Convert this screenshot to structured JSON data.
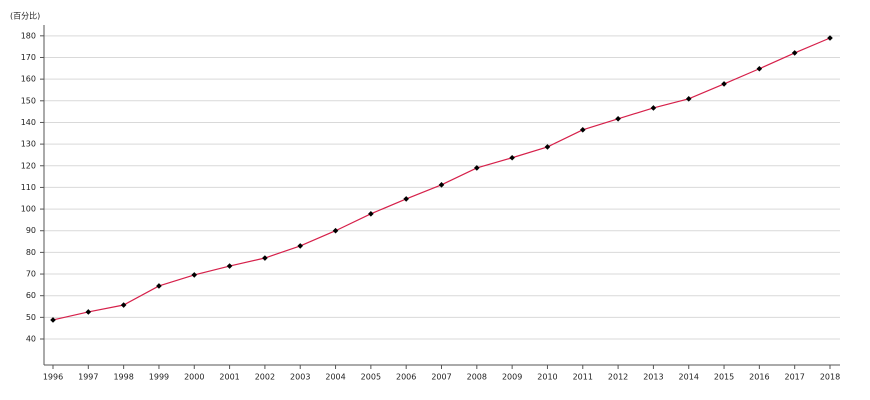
{
  "chart_data": {
    "type": "line",
    "y_label": "(百分比)",
    "categories": [
      "1996",
      "1997",
      "1998",
      "1999",
      "2000",
      "2001",
      "2002",
      "2003",
      "2004",
      "2005",
      "2006",
      "2007",
      "2008",
      "2009",
      "2010",
      "2011",
      "2012",
      "2013",
      "2014",
      "2015",
      "2016",
      "2017",
      "2018"
    ],
    "series": [
      {
        "color": "#d6204a",
        "marker_color": "#000000",
        "values": [
          48.8,
          52.5,
          55.7,
          64.5,
          69.6,
          73.7,
          77.4,
          83,
          90,
          97.8,
          104.7,
          111.2,
          119,
          123.7,
          128.7,
          136.6,
          141.7,
          146.7,
          150.9,
          157.8,
          164.8,
          172.1,
          179
        ]
      }
    ],
    "ylim": [
      28,
      185
    ],
    "yticks": [
      40,
      50,
      60,
      70,
      80,
      90,
      100,
      110,
      120,
      130,
      140,
      150,
      160,
      170,
      180
    ],
    "grid": true
  }
}
